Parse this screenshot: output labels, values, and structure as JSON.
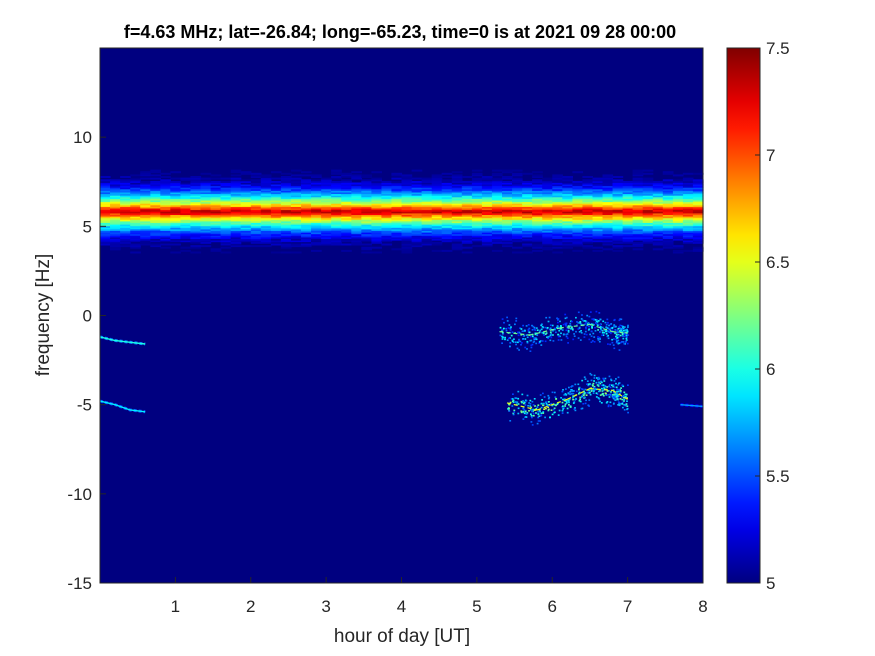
{
  "chart_data": {
    "type": "heatmap",
    "title": "f=4.63 MHz;  lat=-26.84; long=-65.23, time=0 is at 2021 09 28 00:00",
    "xlabel": "hour of day [UT]",
    "ylabel": "frequency [Hz]",
    "xlim": [
      0,
      8
    ],
    "ylim": [
      -15,
      15
    ],
    "x_ticks": [
      1,
      2,
      3,
      4,
      5,
      6,
      7,
      8
    ],
    "x_tick_labels": [
      "1",
      "2",
      "3",
      "4",
      "5",
      "6",
      "7",
      "8"
    ],
    "y_ticks": [
      -15,
      -10,
      -5,
      0,
      5,
      10
    ],
    "y_tick_labels": [
      "-15",
      "-10",
      "-5",
      "0",
      "5",
      "10"
    ],
    "colormap": "jet",
    "colorbar": {
      "range": [
        5,
        7.5
      ],
      "ticks": [
        5,
        5.5,
        6,
        6.5,
        7,
        7.5
      ],
      "tick_labels": [
        "5",
        "5.5",
        "6",
        "6.5",
        "7",
        "7.5"
      ]
    },
    "background_value": 5.0,
    "features": [
      {
        "kind": "horizontal-band",
        "x_range": [
          0,
          8
        ],
        "center_freq": 5.8,
        "half_width": 2.3,
        "peak_value": 7.4
      },
      {
        "kind": "trace",
        "points": [
          [
            0.0,
            -1.2
          ],
          [
            0.2,
            -1.4
          ],
          [
            0.4,
            -1.5
          ],
          [
            0.6,
            -1.6
          ]
        ],
        "value": 6.0
      },
      {
        "kind": "trace",
        "points": [
          [
            0.0,
            -4.8
          ],
          [
            0.2,
            -5.0
          ],
          [
            0.4,
            -5.3
          ],
          [
            0.6,
            -5.4
          ]
        ],
        "value": 5.9
      },
      {
        "kind": "cloud",
        "points": [
          [
            5.3,
            -0.9
          ],
          [
            5.7,
            -1.1
          ],
          [
            6.1,
            -0.7
          ],
          [
            6.5,
            -0.5
          ],
          [
            6.8,
            -0.9
          ],
          [
            7.0,
            -1.0
          ]
        ],
        "value": 6.2
      },
      {
        "kind": "cloud",
        "points": [
          [
            5.4,
            -4.9
          ],
          [
            5.8,
            -5.3
          ],
          [
            6.2,
            -4.7
          ],
          [
            6.5,
            -4.1
          ],
          [
            6.8,
            -4.2
          ],
          [
            7.0,
            -4.7
          ]
        ],
        "value": 6.5
      },
      {
        "kind": "trace",
        "points": [
          [
            7.7,
            -5.0
          ],
          [
            8.0,
            -5.1
          ]
        ],
        "value": 5.7
      }
    ]
  }
}
